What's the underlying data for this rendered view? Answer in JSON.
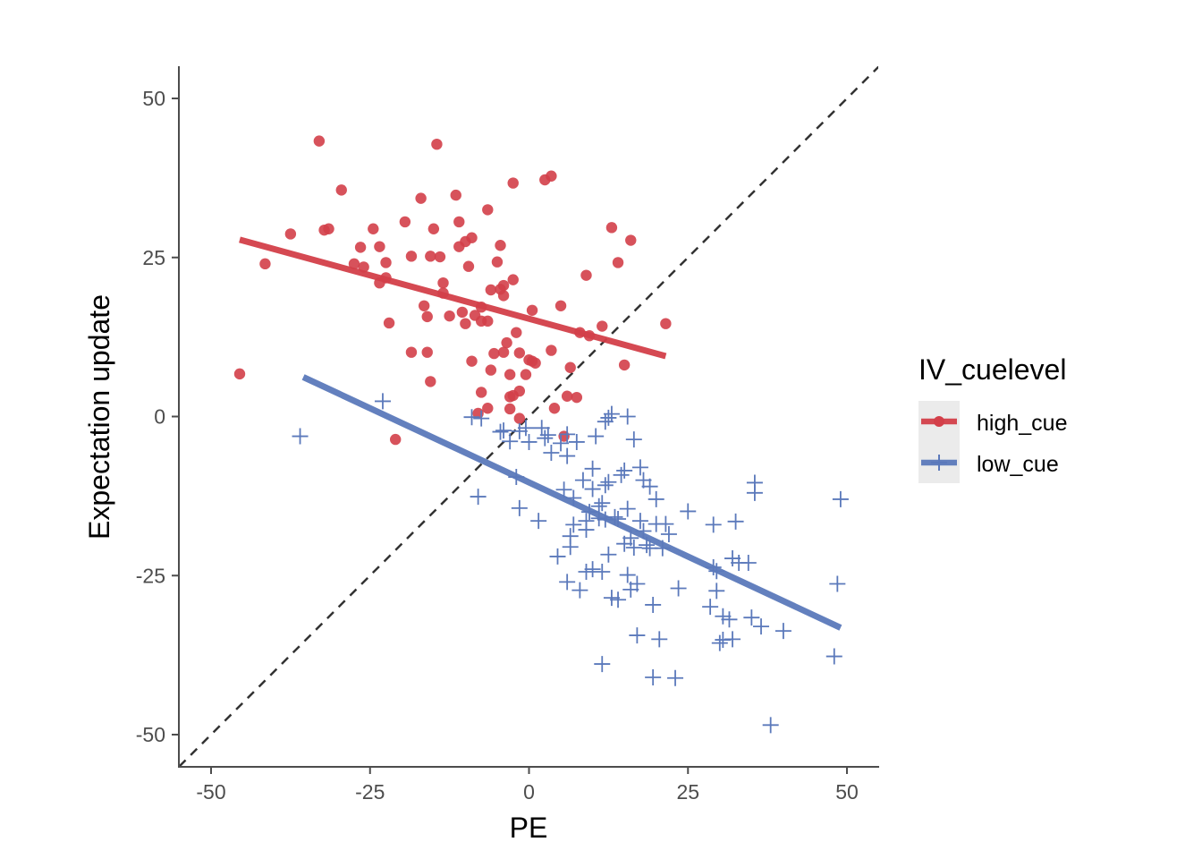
{
  "chart_data": {
    "type": "scatter",
    "title": "",
    "xlabel": "PE",
    "ylabel": "Expectation update",
    "xlim": [
      -55,
      55
    ],
    "ylim": [
      -55,
      55
    ],
    "x_ticks": [
      -50,
      -25,
      0,
      25,
      50
    ],
    "y_ticks": [
      -50,
      -25,
      0,
      25,
      50
    ],
    "x_tick_labels": [
      "-50",
      "-25",
      "0",
      "25",
      "50"
    ],
    "y_tick_labels": [
      "-50",
      "-25",
      "0",
      "25",
      "50"
    ],
    "grid": false,
    "legend": {
      "title": "IV_cuelevel",
      "position": "right"
    },
    "reference_line": {
      "type": "identity",
      "style": "dashed",
      "color": "#333333"
    },
    "series": [
      {
        "name": "high_cue",
        "color": "#d33f49",
        "marker": "circle",
        "fit": {
          "x": [
            -45.5,
            21.5
          ],
          "y": [
            27.8,
            9.5
          ]
        },
        "points": [
          [
            -45.5,
            6.7
          ],
          [
            -41.5,
            24.0
          ],
          [
            -37.5,
            28.7
          ],
          [
            -33.0,
            43.3
          ],
          [
            -32.2,
            29.3
          ],
          [
            -31.5,
            29.5
          ],
          [
            -29.5,
            35.6
          ],
          [
            -27.5,
            24.0
          ],
          [
            -26.5,
            26.6
          ],
          [
            -26.0,
            23.5
          ],
          [
            -24.5,
            29.5
          ],
          [
            -23.5,
            26.7
          ],
          [
            -23.5,
            21.0
          ],
          [
            -22.5,
            21.8
          ],
          [
            -22.5,
            24.2
          ],
          [
            -22.0,
            14.7
          ],
          [
            -21.0,
            -3.6
          ],
          [
            -19.5,
            30.6
          ],
          [
            -18.5,
            25.2
          ],
          [
            -18.5,
            10.1
          ],
          [
            -17.0,
            34.3
          ],
          [
            -16.5,
            17.4
          ],
          [
            -16.0,
            15.7
          ],
          [
            -16.0,
            10.1
          ],
          [
            -15.5,
            25.2
          ],
          [
            -15.5,
            5.5
          ],
          [
            -15.0,
            29.5
          ],
          [
            -14.5,
            42.8
          ],
          [
            -14.0,
            25.1
          ],
          [
            -13.5,
            21.0
          ],
          [
            -13.5,
            19.4
          ],
          [
            -12.5,
            15.8
          ],
          [
            -11.5,
            34.8
          ],
          [
            -11.0,
            30.6
          ],
          [
            -11.0,
            26.7
          ],
          [
            -10.5,
            16.4
          ],
          [
            -10.0,
            14.6
          ],
          [
            -10.0,
            27.5
          ],
          [
            -9.5,
            23.6
          ],
          [
            -9.0,
            28.1
          ],
          [
            -9.0,
            8.7
          ],
          [
            -8.5,
            15.9
          ],
          [
            -8.0,
            0.5
          ],
          [
            -7.5,
            3.8
          ],
          [
            -7.5,
            17.2
          ],
          [
            -7.5,
            15.0
          ],
          [
            -6.5,
            32.5
          ],
          [
            -6.5,
            15.0
          ],
          [
            -6.5,
            1.3
          ],
          [
            -6.0,
            19.9
          ],
          [
            -6.0,
            7.3
          ],
          [
            -5.5,
            9.9
          ],
          [
            -5.0,
            24.3
          ],
          [
            -4.5,
            26.9
          ],
          [
            -4.5,
            20.0
          ],
          [
            -4.0,
            20.6
          ],
          [
            -4.0,
            19.0
          ],
          [
            -4.0,
            10.1
          ],
          [
            -3.5,
            11.6
          ],
          [
            -3.0,
            3.1
          ],
          [
            -3.0,
            6.6
          ],
          [
            -3.0,
            1.2
          ],
          [
            -2.5,
            36.7
          ],
          [
            -2.5,
            21.5
          ],
          [
            -2.5,
            3.3
          ],
          [
            -2.0,
            13.2
          ],
          [
            -1.5,
            10.0
          ],
          [
            -1.5,
            4.0
          ],
          [
            -1.5,
            -0.3
          ],
          [
            -0.5,
            6.6
          ],
          [
            0.0,
            8.9
          ],
          [
            0.5,
            16.7
          ],
          [
            0.5,
            8.7
          ],
          [
            1.0,
            8.4
          ],
          [
            2.5,
            37.2
          ],
          [
            3.5,
            37.8
          ],
          [
            3.5,
            10.4
          ],
          [
            4.0,
            1.3
          ],
          [
            5.0,
            17.4
          ],
          [
            5.5,
            -3.1
          ],
          [
            6.0,
            3.2
          ],
          [
            6.5,
            7.7
          ],
          [
            7.5,
            3.0
          ],
          [
            8.0,
            13.2
          ],
          [
            9.0,
            22.2
          ],
          [
            9.5,
            12.7
          ],
          [
            11.5,
            14.2
          ],
          [
            13.0,
            29.7
          ],
          [
            14.0,
            24.2
          ],
          [
            15.0,
            8.1
          ],
          [
            16.0,
            27.7
          ],
          [
            21.5,
            14.6
          ]
        ]
      },
      {
        "name": "low_cue",
        "color": "#5b79bb",
        "marker": "plus",
        "fit": {
          "x": [
            -35.5,
            49.0
          ],
          "y": [
            6.2,
            -33.2
          ]
        },
        "points": [
          [
            -36.0,
            -3.1
          ],
          [
            -23.0,
            2.4
          ],
          [
            -9.0,
            -0.1
          ],
          [
            -8.0,
            -12.6
          ],
          [
            -7.5,
            -0.3
          ],
          [
            -4.5,
            -2.4
          ],
          [
            -4.0,
            -2.2
          ],
          [
            -3.0,
            -3.9
          ],
          [
            -2.0,
            -9.5
          ],
          [
            -1.5,
            -14.4
          ],
          [
            -1.5,
            -2.3
          ],
          [
            -0.5,
            -1.8
          ],
          [
            0.0,
            -4.0
          ],
          [
            1.5,
            -16.4
          ],
          [
            2.0,
            -1.8
          ],
          [
            2.5,
            -3.4
          ],
          [
            3.0,
            -2.9
          ],
          [
            3.5,
            -5.7
          ],
          [
            4.5,
            -22.0
          ],
          [
            5.0,
            -4.2
          ],
          [
            5.5,
            -11.5
          ],
          [
            6.0,
            -26.0
          ],
          [
            6.0,
            -6.2
          ],
          [
            6.0,
            -2.8
          ],
          [
            6.5,
            -18.8
          ],
          [
            6.5,
            -20.5
          ],
          [
            7.0,
            -17.0
          ],
          [
            7.0,
            -12.8
          ],
          [
            7.5,
            -4.0
          ],
          [
            8.0,
            -27.3
          ],
          [
            8.5,
            -10.0
          ],
          [
            9.0,
            -24.4
          ],
          [
            9.0,
            -16.4
          ],
          [
            9.0,
            -17.8
          ],
          [
            9.5,
            -15.0
          ],
          [
            10.0,
            -8.2
          ],
          [
            10.0,
            -24.0
          ],
          [
            10.0,
            -11.4
          ],
          [
            10.5,
            -3.1
          ],
          [
            11.0,
            -14.1
          ],
          [
            11.0,
            -16.0
          ],
          [
            11.5,
            -38.9
          ],
          [
            11.5,
            -24.4
          ],
          [
            11.5,
            -13.6
          ],
          [
            12.0,
            -0.8
          ],
          [
            12.0,
            -10.8
          ],
          [
            12.0,
            -16.2
          ],
          [
            12.5,
            -21.7
          ],
          [
            12.5,
            -0.2
          ],
          [
            12.5,
            -10.3
          ],
          [
            13.0,
            0.4
          ],
          [
            13.0,
            -28.5
          ],
          [
            13.5,
            -15.8
          ],
          [
            14.0,
            -28.8
          ],
          [
            14.0,
            -16.1
          ],
          [
            14.5,
            -9.2
          ],
          [
            15.0,
            -8.5
          ],
          [
            15.0,
            -20.0
          ],
          [
            15.5,
            -24.9
          ],
          [
            15.5,
            -14.5
          ],
          [
            15.5,
            0.0
          ],
          [
            16.0,
            -19.1
          ],
          [
            16.0,
            -27.2
          ],
          [
            16.5,
            -3.6
          ],
          [
            16.5,
            -20.6
          ],
          [
            17.0,
            -26.3
          ],
          [
            17.0,
            -34.4
          ],
          [
            17.5,
            -16.4
          ],
          [
            17.5,
            -8.0
          ],
          [
            18.0,
            -18.0
          ],
          [
            18.0,
            -10.0
          ],
          [
            18.5,
            -20.2
          ],
          [
            19.0,
            -20.7
          ],
          [
            19.0,
            -11.0
          ],
          [
            19.5,
            -41.0
          ],
          [
            19.5,
            -29.6
          ],
          [
            20.0,
            -13.0
          ],
          [
            20.0,
            -16.9
          ],
          [
            20.5,
            -35.0
          ],
          [
            21.0,
            -20.7
          ],
          [
            21.5,
            -16.9
          ],
          [
            22.0,
            -18.5
          ],
          [
            23.0,
            -41.1
          ],
          [
            23.5,
            -27.0
          ],
          [
            25.0,
            -14.9
          ],
          [
            28.5,
            -29.9
          ],
          [
            29.0,
            -23.7
          ],
          [
            29.0,
            -17.0
          ],
          [
            29.5,
            -24.3
          ],
          [
            29.5,
            -27.4
          ],
          [
            30.0,
            -35.6
          ],
          [
            30.5,
            -31.4
          ],
          [
            30.5,
            -35.1
          ],
          [
            31.5,
            -31.9
          ],
          [
            32.0,
            -35.0
          ],
          [
            32.0,
            -22.3
          ],
          [
            32.5,
            -16.5
          ],
          [
            33.0,
            -23.0
          ],
          [
            34.5,
            -23.0
          ],
          [
            35.0,
            -31.6
          ],
          [
            35.5,
            -12.0
          ],
          [
            35.5,
            -10.4
          ],
          [
            36.5,
            -33.0
          ],
          [
            38.0,
            -48.5
          ],
          [
            40.0,
            -33.7
          ],
          [
            48.0,
            -37.7
          ],
          [
            48.5,
            -26.3
          ],
          [
            49.0,
            -13.0
          ]
        ]
      }
    ]
  }
}
